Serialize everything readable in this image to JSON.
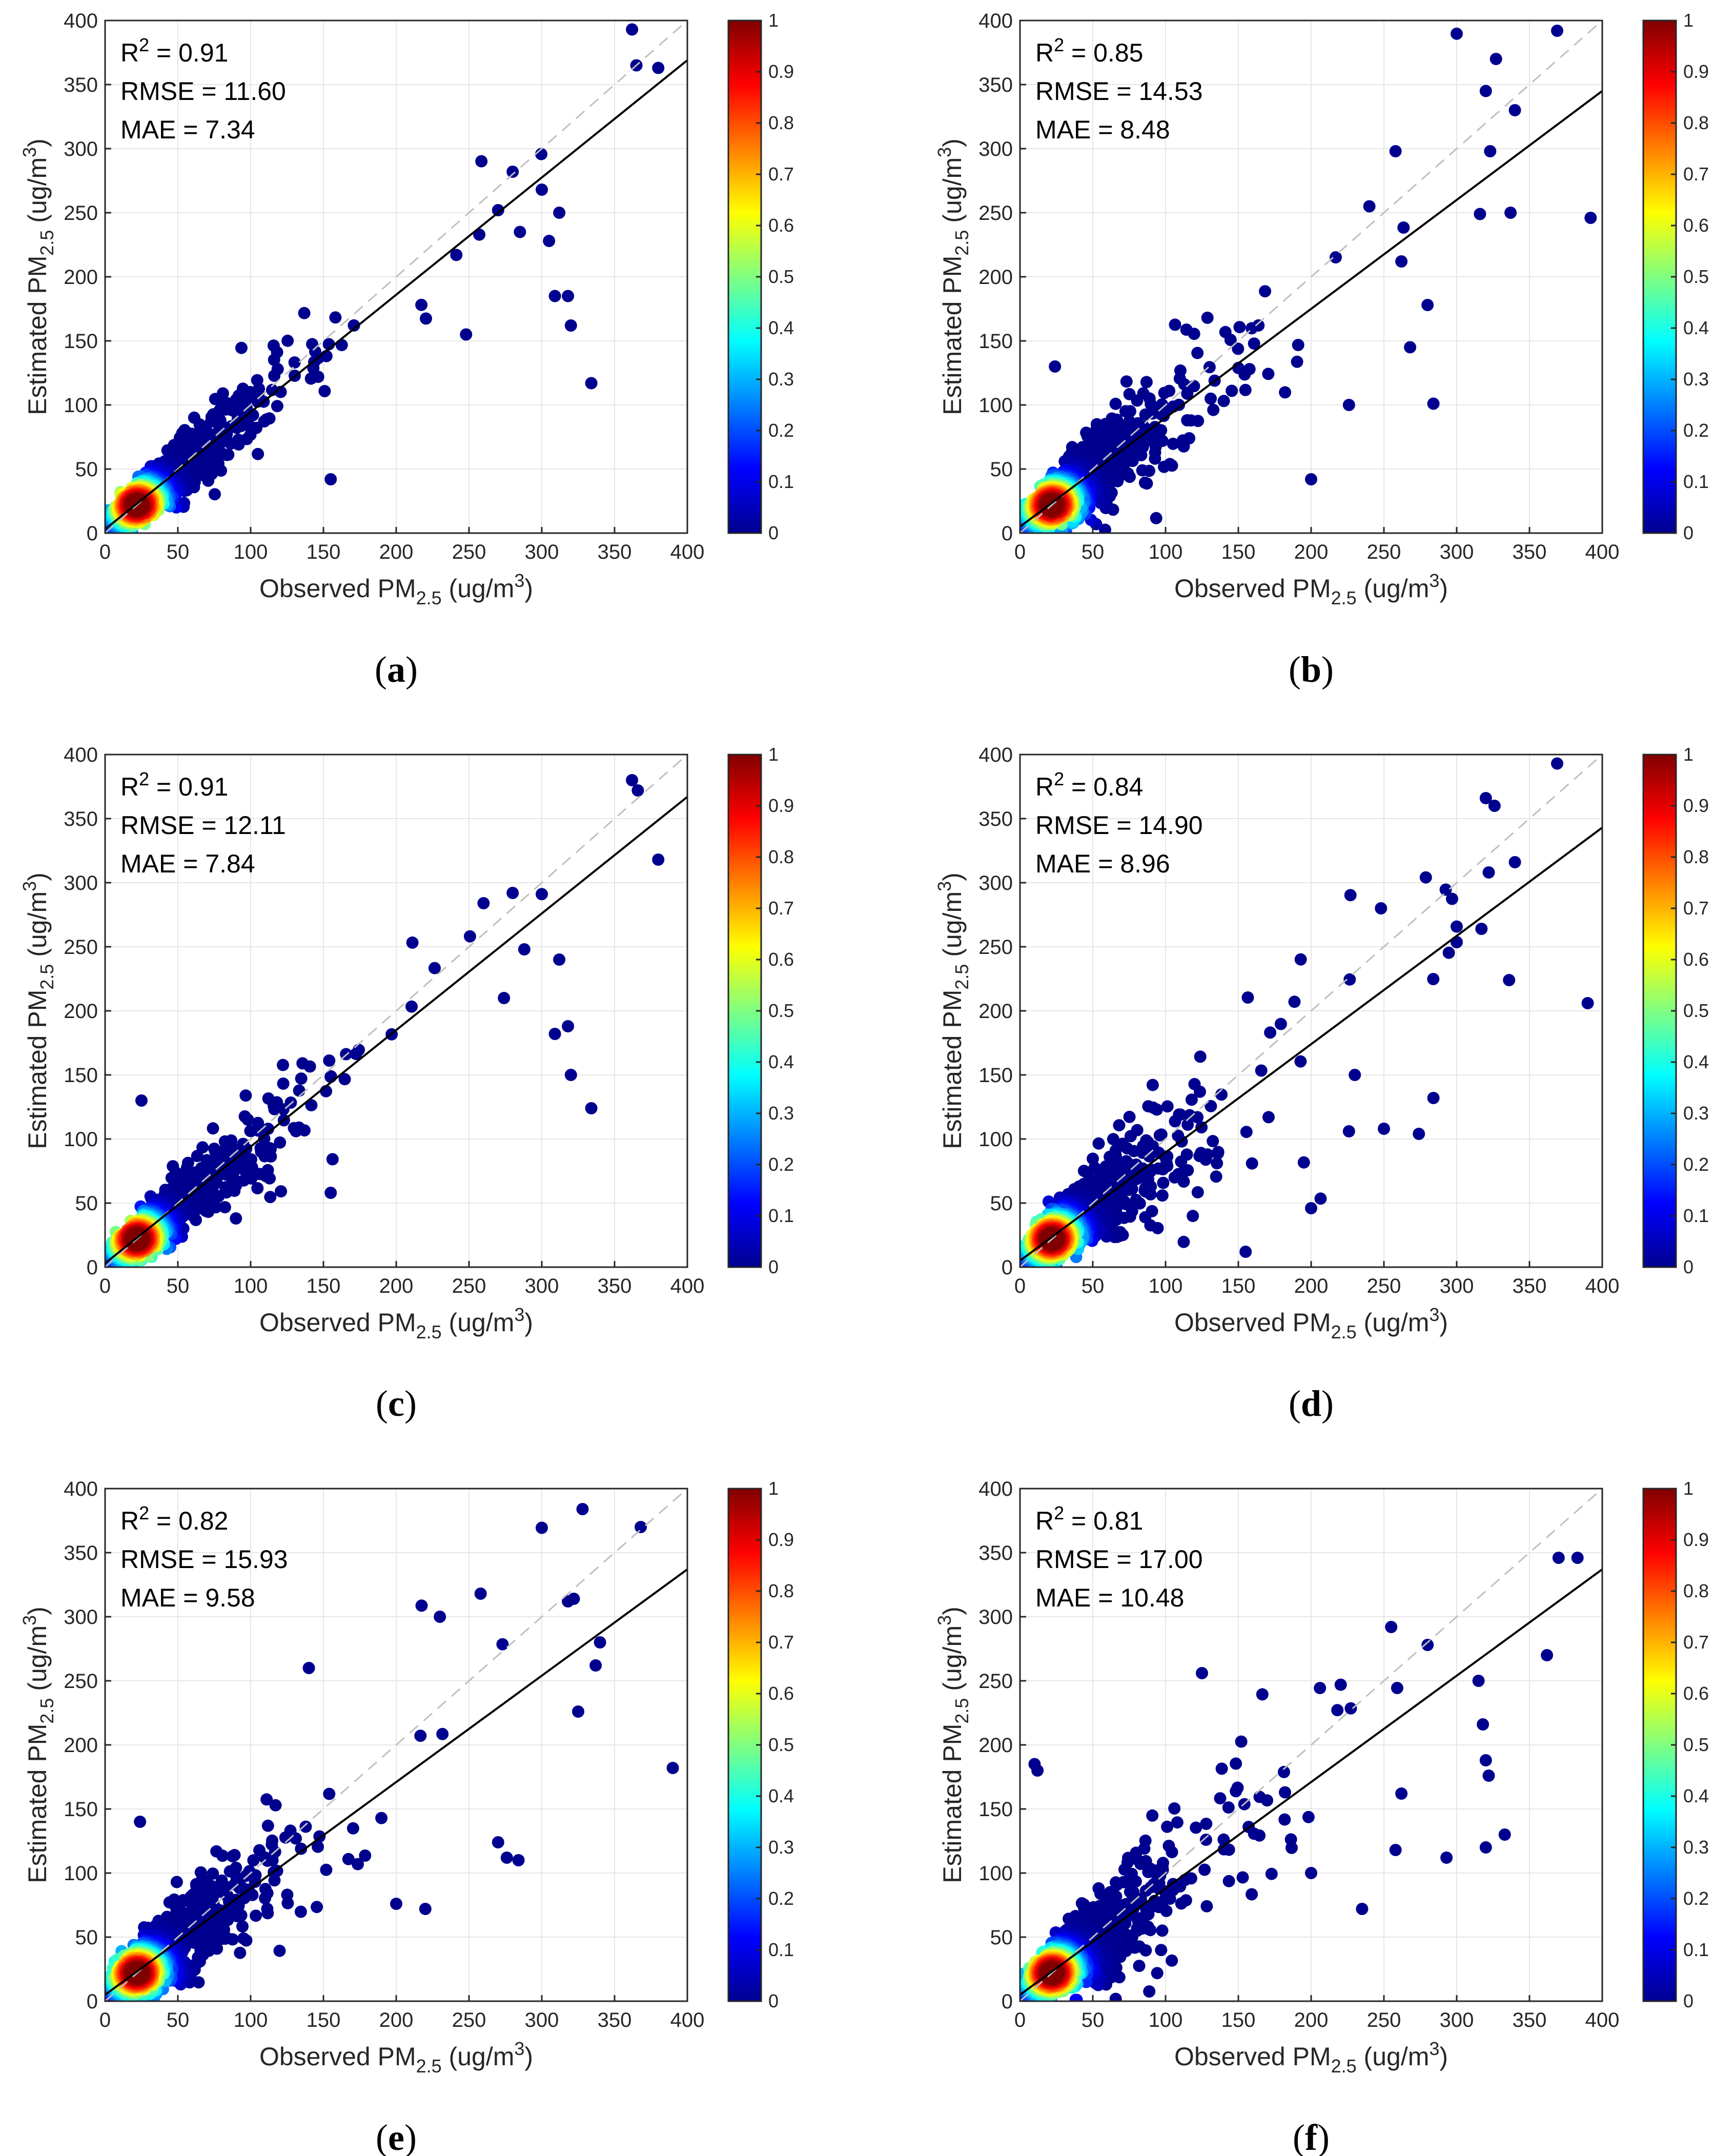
{
  "labels": {
    "x_axis_prefix": "Observed PM",
    "y_axis_prefix": "Estimated PM",
    "subscript": "2.5",
    "unit_open": "(ug/m",
    "unit_sup": "3",
    "unit_close": ")",
    "r2_prefix": "R",
    "r2_sup": "2",
    "rmse_prefix": "RMSE = ",
    "mae_prefix": "MAE = "
  },
  "colors": {
    "points": "#00008f",
    "fit_line": "#000000",
    "identity_line": "#bfbfbf",
    "grid": "#e6e6e6",
    "colormap": [
      "#00008f",
      "#0000ff",
      "#0080ff",
      "#00ffff",
      "#80ff80",
      "#ffff00",
      "#ff8000",
      "#ff0000",
      "#800000"
    ]
  },
  "colorbar_ticks": [
    "0",
    "0.1",
    "0.2",
    "0.3",
    "0.4",
    "0.5",
    "0.6",
    "0.7",
    "0.8",
    "0.9",
    "1"
  ],
  "chart_data": [
    {
      "type": "scatter",
      "panel": "a",
      "caption": "(a)",
      "xlabel": "Observed PM2.5 (ug/m3)",
      "ylabel": "Estimated PM2.5 (ug/m3)",
      "xlim": [
        0,
        400
      ],
      "ylim": [
        0,
        400
      ],
      "x_ticks": [
        "0",
        "50",
        "100",
        "150",
        "200",
        "250",
        "300",
        "350",
        "400"
      ],
      "y_ticks": [
        "0",
        "50",
        "100",
        "150",
        "200",
        "250",
        "300",
        "350",
        "400"
      ],
      "r2": "0.91",
      "rmse": "11.60",
      "mae": "7.34",
      "fit": {
        "slope": 0.915,
        "intercept": 3.0
      },
      "outliers": [
        [
          362,
          393
        ],
        [
          365,
          365
        ],
        [
          380,
          363
        ],
        [
          334,
          117
        ],
        [
          309,
          185
        ],
        [
          318,
          185
        ],
        [
          320,
          162
        ],
        [
          312,
          250
        ],
        [
          305,
          228
        ],
        [
          300,
          268
        ],
        [
          155,
          42
        ],
        [
          248,
          155
        ],
        [
          280,
          282
        ],
        [
          270,
          252
        ],
        [
          285,
          235
        ]
      ]
    },
    {
      "type": "scatter",
      "panel": "b",
      "caption": "(b)",
      "xlabel": "Observed PM2.5 (ug/m3)",
      "ylabel": "Estimated PM2.5 (ug/m3)",
      "xlim": [
        0,
        400
      ],
      "ylim": [
        0,
        400
      ],
      "x_ticks": [
        "0",
        "50",
        "100",
        "150",
        "200",
        "250",
        "300",
        "350",
        "400"
      ],
      "y_ticks": [
        "0",
        "50",
        "100",
        "150",
        "200",
        "250",
        "300",
        "350",
        "400"
      ],
      "r2": "0.85",
      "rmse": "14.53",
      "mae": "8.48",
      "fit": {
        "slope": 0.85,
        "intercept": 5.0
      },
      "outliers": [
        [
          369,
          392
        ],
        [
          327,
          370
        ],
        [
          320,
          345
        ],
        [
          340,
          330
        ],
        [
          323,
          298
        ],
        [
          316,
          249
        ],
        [
          337,
          250
        ],
        [
          392,
          246
        ],
        [
          284,
          101
        ],
        [
          268,
          145
        ],
        [
          280,
          178
        ],
        [
          262,
          212
        ],
        [
          258,
          298
        ],
        [
          200,
          42
        ],
        [
          226,
          100
        ],
        [
          240,
          255
        ],
        [
          24,
          130
        ]
      ]
    },
    {
      "type": "scatter",
      "panel": "c",
      "caption": "(c)",
      "xlabel": "Observed PM2.5 (ug/m3)",
      "ylabel": "Estimated PM2.5 (ug/m3)",
      "xlim": [
        0,
        400
      ],
      "ylim": [
        0,
        400
      ],
      "x_ticks": [
        "0",
        "50",
        "100",
        "150",
        "200",
        "250",
        "300",
        "350",
        "400"
      ],
      "y_ticks": [
        "0",
        "50",
        "100",
        "150",
        "200",
        "250",
        "300",
        "350",
        "400"
      ],
      "r2": "0.91",
      "rmse": "12.11",
      "mae": "7.84",
      "fit": {
        "slope": 0.91,
        "intercept": 3.0
      },
      "outliers": [
        [
          362,
          380
        ],
        [
          366,
          372
        ],
        [
          380,
          318
        ],
        [
          334,
          124
        ],
        [
          320,
          150
        ],
        [
          318,
          188
        ],
        [
          312,
          240
        ],
        [
          309,
          182
        ],
        [
          288,
          248
        ],
        [
          274,
          210
        ],
        [
          155,
          58
        ],
        [
          25,
          130
        ],
        [
          280,
          292
        ],
        [
          260,
          284
        ]
      ]
    },
    {
      "type": "scatter",
      "panel": "d",
      "caption": "(d)",
      "xlabel": "Observed PM2.5 (ug/m3)",
      "ylabel": "Estimated PM2.5 (ug/m3)",
      "xlim": [
        0,
        400
      ],
      "ylim": [
        0,
        400
      ],
      "x_ticks": [
        "0",
        "50",
        "100",
        "150",
        "200",
        "250",
        "300",
        "350",
        "400"
      ],
      "y_ticks": [
        "0",
        "50",
        "100",
        "150",
        "200",
        "250",
        "300",
        "350",
        "400"
      ],
      "r2": "0.84",
      "rmse": "14.90",
      "mae": "8.96",
      "fit": {
        "slope": 0.845,
        "intercept": 5.0
      },
      "outliers": [
        [
          369,
          393
        ],
        [
          320,
          366
        ],
        [
          326,
          360
        ],
        [
          340,
          316
        ],
        [
          322,
          308
        ],
        [
          317,
          264
        ],
        [
          336,
          224
        ],
        [
          390,
          206
        ],
        [
          274,
          104
        ],
        [
          284,
          132
        ],
        [
          250,
          108
        ],
        [
          226,
          106
        ],
        [
          200,
          46
        ],
        [
          155,
          12
        ],
        [
          248,
          280
        ],
        [
          230,
          150
        ]
      ]
    },
    {
      "type": "scatter",
      "panel": "e",
      "caption": "(e)",
      "xlabel": "Observed PM2.5 (ug/m3)",
      "ylabel": "Estimated PM2.5 (ug/m3)",
      "xlim": [
        0,
        400
      ],
      "ylim": [
        0,
        400
      ],
      "x_ticks": [
        "0",
        "50",
        "100",
        "150",
        "200",
        "250",
        "300",
        "350",
        "400"
      ],
      "y_ticks": [
        "0",
        "50",
        "100",
        "150",
        "200",
        "250",
        "300",
        "350",
        "400"
      ],
      "r2": "0.82",
      "rmse": "15.93",
      "mae": "9.58",
      "fit": {
        "slope": 0.83,
        "intercept": 5.0
      },
      "outliers": [
        [
          328,
          384
        ],
        [
          368,
          370
        ],
        [
          322,
          314
        ],
        [
          318,
          312
        ],
        [
          340,
          280
        ],
        [
          337,
          262
        ],
        [
          325,
          226
        ],
        [
          390,
          182
        ],
        [
          270,
          124
        ],
        [
          276,
          112
        ],
        [
          284,
          110
        ],
        [
          220,
          72
        ],
        [
          200,
          76
        ],
        [
          140,
          260
        ],
        [
          258,
          318
        ],
        [
          230,
          300
        ],
        [
          24,
          140
        ]
      ]
    },
    {
      "type": "scatter",
      "panel": "f",
      "caption": "(f)",
      "xlabel": "Observed PM2.5 (ug/m3)",
      "ylabel": "Estimated PM2.5 (ug/m3)",
      "xlim": [
        0,
        400
      ],
      "ylim": [
        0,
        400
      ],
      "x_ticks": [
        "0",
        "50",
        "100",
        "150",
        "200",
        "250",
        "300",
        "350",
        "400"
      ],
      "y_ticks": [
        "0",
        "50",
        "100",
        "150",
        "200",
        "250",
        "300",
        "350",
        "400"
      ],
      "r2": "0.81",
      "rmse": "17.00",
      "mae": "10.48",
      "fit": {
        "slope": 0.83,
        "intercept": 5.0
      },
      "outliers": [
        [
          370,
          346
        ],
        [
          383,
          346
        ],
        [
          362,
          270
        ],
        [
          315,
          250
        ],
        [
          318,
          216
        ],
        [
          320,
          188
        ],
        [
          322,
          176
        ],
        [
          320,
          120
        ],
        [
          333,
          130
        ],
        [
          293,
          112
        ],
        [
          258,
          118
        ],
        [
          262,
          162
        ],
        [
          235,
          72
        ],
        [
          200,
          100
        ],
        [
          10,
          185
        ],
        [
          12,
          180
        ],
        [
          125,
          256
        ],
        [
          280,
          278
        ],
        [
          255,
          292
        ]
      ]
    }
  ]
}
